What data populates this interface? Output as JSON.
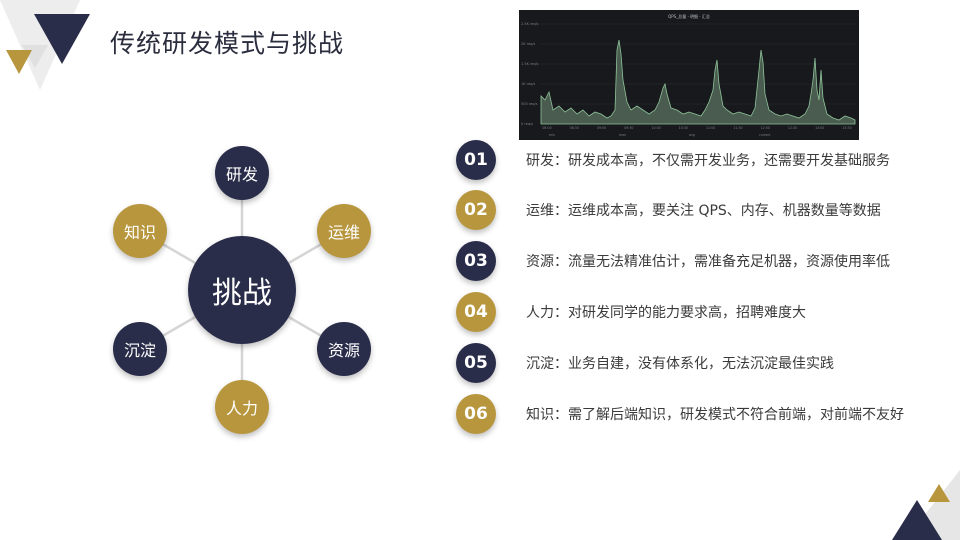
{
  "title": "传统研发模式与挑战",
  "colors": {
    "navy": "#2a2d4a",
    "gold": "#b8963e",
    "gray": "#d9d9d9",
    "chart_fill": "#4a5c4f",
    "chart_line": "#8fc39a"
  },
  "chart_thumbnail": {
    "header_text": "QPS_总量 · 明细 · 汇总",
    "y_ticks": [
      "2.5K req/s",
      "2K req/s",
      "1.5K req/s",
      "1K req/s",
      "500 req/s",
      "0 req/s"
    ],
    "x_ticks": [
      "08:00",
      "08:30",
      "09:00",
      "09:30",
      "10:00",
      "10:30",
      "11:00",
      "11:30",
      "12:00",
      "12:30",
      "13:00",
      "13:30"
    ],
    "legend_items": [
      "min",
      "max",
      "avg",
      "current"
    ]
  },
  "hub": {
    "label": "挑战"
  },
  "spokes": [
    {
      "label": "研发",
      "color": "navy"
    },
    {
      "label": "运维",
      "color": "gold"
    },
    {
      "label": "资源",
      "color": "navy"
    },
    {
      "label": "人力",
      "color": "gold"
    },
    {
      "label": "沉淀",
      "color": "navy"
    },
    {
      "label": "知识",
      "color": "gold"
    }
  ],
  "list": [
    {
      "num": "01",
      "text": "研发：研发成本高，不仅需开发业务，还需要开发基础服务"
    },
    {
      "num": "02",
      "text": "运维：运维成本高，要关注 QPS、内存、机器数量等数据"
    },
    {
      "num": "03",
      "text": "资源：流量无法精准估计，需准备充足机器，资源使用率低"
    },
    {
      "num": "04",
      "text": "人力：对研发同学的能力要求高，招聘难度大"
    },
    {
      "num": "05",
      "text": "沉淀：业务自建，没有体系化，无法沉淀最佳实践"
    },
    {
      "num": "06",
      "text": "知识：需了解后端知识，研发模式不符合前端，对前端不友好"
    }
  ]
}
